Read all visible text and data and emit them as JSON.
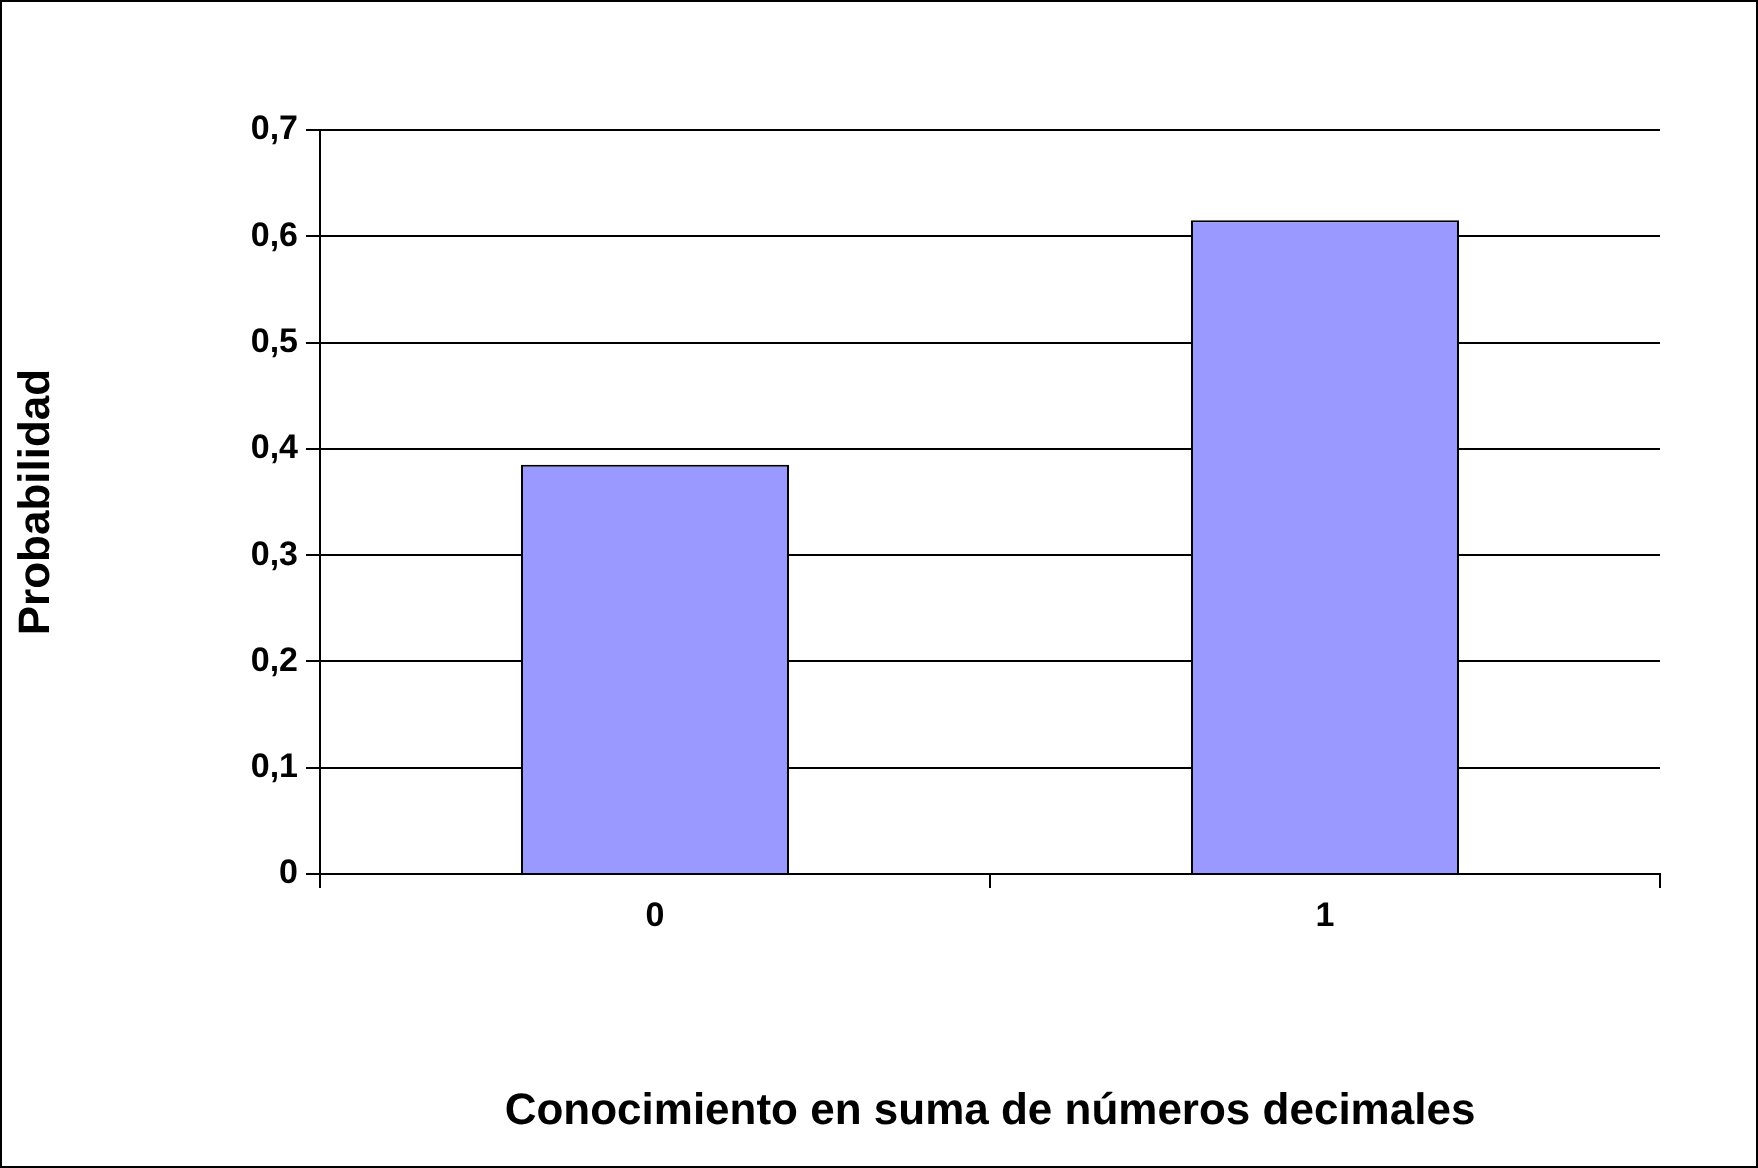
{
  "chart_data": {
    "type": "bar",
    "xlabel": "Conocimiento en suma de números decimales",
    "ylabel": "Probabilidad",
    "categories": [
      "0",
      "1"
    ],
    "values": [
      0.385,
      0.615
    ],
    "color": "#9999ff",
    "ylim": [
      0,
      0.7
    ],
    "yticks": [
      {
        "value": 0,
        "label": "0"
      },
      {
        "value": 0.1,
        "label": "0,1"
      },
      {
        "value": 0.2,
        "label": "0,2"
      },
      {
        "value": 0.3,
        "label": "0,3"
      },
      {
        "value": 0.4,
        "label": "0,4"
      },
      {
        "value": 0.5,
        "label": "0,5"
      },
      {
        "value": 0.6,
        "label": "0,6"
      },
      {
        "value": 0.7,
        "label": "0,7"
      }
    ],
    "grid": "y"
  }
}
